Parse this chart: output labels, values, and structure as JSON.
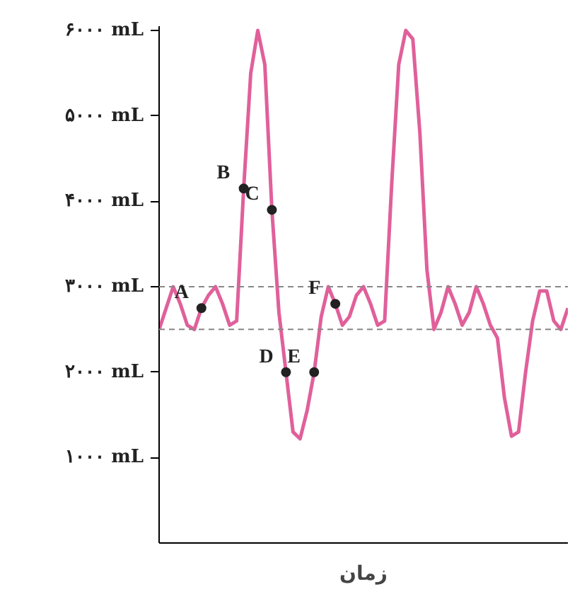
{
  "chart_data": {
    "type": "line",
    "xlabel": "زمان",
    "categories": [
      null,
      null,
      null,
      null,
      null,
      null,
      null,
      null,
      null,
      null,
      null,
      null,
      null,
      null,
      null,
      null,
      null,
      null,
      null,
      null,
      null,
      null,
      null,
      null,
      null,
      null,
      null,
      null,
      null,
      null,
      null,
      null,
      null,
      null,
      null,
      null,
      null,
      null,
      null,
      null,
      null,
      null,
      null,
      null,
      null,
      null,
      null,
      null,
      null,
      null,
      null,
      null,
      null,
      null,
      null,
      null,
      null,
      null,
      null
    ],
    "ylim": [
      0,
      6050
    ],
    "yticks": [
      {
        "value": 1000,
        "label": "۱۰۰۰ mL"
      },
      {
        "value": 2000,
        "label": "۲۰۰۰ mL"
      },
      {
        "value": 3000,
        "label": "۳۰۰۰ mL"
      },
      {
        "value": 4000,
        "label": "۴۰۰۰ mL"
      },
      {
        "value": 5000,
        "label": "۵۰۰۰ mL"
      },
      {
        "value": 6000,
        "label": "۶۰۰۰ mL"
      }
    ],
    "series": [
      {
        "color": "#e0609a",
        "values": [
          2500,
          2750,
          3000,
          2800,
          2550,
          2500,
          2750,
          2900,
          3000,
          2800,
          2550,
          2600,
          4150,
          5500,
          6000,
          5600,
          3900,
          2700,
          2000,
          1300,
          1220,
          1550,
          2000,
          2650,
          3000,
          2800,
          2550,
          2650,
          2900,
          3000,
          2800,
          2550,
          2600,
          4200,
          5600,
          6000,
          5900,
          4800,
          3200,
          2500,
          2700,
          3000,
          2800,
          2550,
          2700,
          3000,
          2800,
          2550,
          2400,
          1700,
          1250,
          1300,
          2000,
          2600,
          2950,
          2950,
          2600,
          2500,
          2750
        ]
      },
      {
        "type": "scatter",
        "color": "#222222",
        "values": [
          null,
          null,
          null,
          null,
          null,
          null,
          2750,
          null,
          null,
          null,
          null,
          null,
          4150,
          null,
          null,
          null,
          3900,
          null,
          2000,
          null,
          null,
          null,
          2000,
          null,
          null,
          2800,
          null,
          null,
          null,
          null,
          null,
          null,
          null,
          null,
          null,
          null,
          null,
          null,
          null,
          null,
          null,
          null,
          null,
          null,
          null,
          null,
          null,
          null,
          null,
          null,
          null,
          null,
          null,
          null,
          null,
          null,
          null,
          null,
          null
        ],
        "value_labels": [
          null,
          null,
          null,
          null,
          null,
          null,
          "A",
          null,
          null,
          null,
          null,
          null,
          "B",
          null,
          null,
          null,
          "C",
          null,
          "D",
          null,
          null,
          null,
          "E",
          null,
          null,
          "F",
          null,
          null,
          null,
          null,
          null,
          null,
          null,
          null,
          null,
          null,
          null,
          null,
          null,
          null,
          null,
          null,
          null,
          null,
          null,
          null,
          null,
          null,
          null,
          null,
          null,
          null,
          null,
          null,
          null,
          null,
          null,
          null,
          null
        ]
      }
    ],
    "ref_lines": [
      {
        "axis": "y",
        "value": 3000,
        "color": "#888888",
        "line_style": "dashed"
      },
      {
        "axis": "y",
        "value": 2500,
        "color": "#888888",
        "line_style": "dashed"
      }
    ],
    "grid": false
  }
}
